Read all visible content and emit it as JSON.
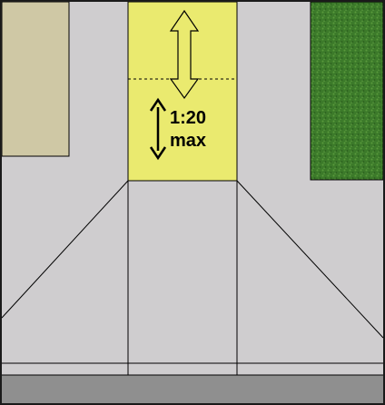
{
  "diagram": {
    "slope_label": {
      "line1": "1:20",
      "line2": "max"
    },
    "colors": {
      "sidewalk": "#cfcdcf",
      "curb_ramp_landing": "#eaea6f",
      "planter_tan": "#cfc8a5",
      "grass": "#3c7a2a",
      "street": "#8f8f8f",
      "outline": "#000000",
      "frame": "#1a1a1a"
    },
    "icons": [
      "double-headed-arrow-icon",
      "slope-arrow-icon"
    ]
  }
}
